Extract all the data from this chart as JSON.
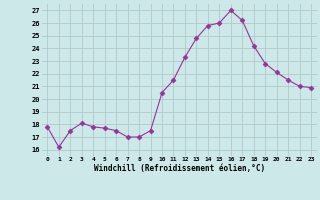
{
  "x": [
    0,
    1,
    2,
    3,
    4,
    5,
    6,
    7,
    8,
    9,
    10,
    11,
    12,
    13,
    14,
    15,
    16,
    17,
    18,
    19,
    20,
    21,
    22,
    23
  ],
  "y": [
    17.8,
    16.2,
    17.5,
    18.1,
    17.8,
    17.7,
    17.5,
    17.0,
    17.0,
    17.5,
    20.5,
    21.5,
    23.3,
    24.8,
    25.8,
    26.0,
    27.0,
    26.2,
    24.2,
    22.8,
    22.1,
    21.5,
    21.0,
    20.9
  ],
  "line_color": "#993399",
  "marker": "D",
  "marker_size": 2.5,
  "bg_color": "#cce8e8",
  "grid_color": "#b0c8c8",
  "xlabel": "Windchill (Refroidissement éolien,°C)",
  "ylabel_ticks": [
    16,
    17,
    18,
    19,
    20,
    21,
    22,
    23,
    24,
    25,
    26,
    27
  ],
  "xlim": [
    -0.5,
    23.5
  ],
  "ylim": [
    15.5,
    27.5
  ]
}
